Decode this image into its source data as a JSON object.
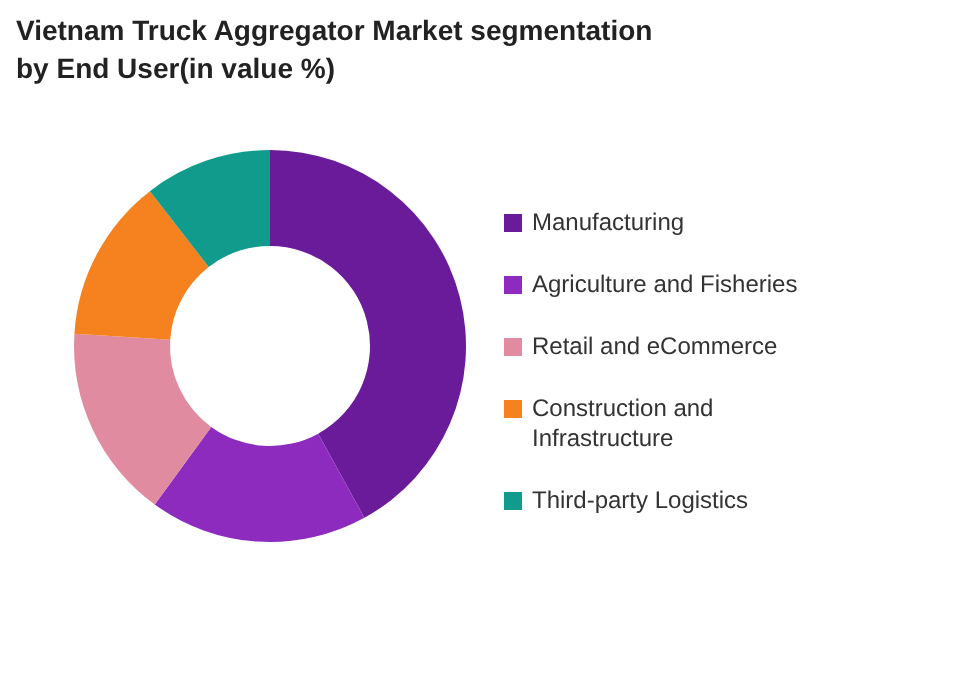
{
  "chart_data": {
    "type": "donut",
    "title": "Vietnam Truck Aggregator Market segmentation by End User(in value %)",
    "categories": [
      "Manufacturing",
      "Agriculture and Fisheries",
      "Retail and eCommerce",
      "Construction and Infrastructure",
      "Third-party Logistics"
    ],
    "values": [
      42,
      18,
      16,
      13.5,
      10.5
    ],
    "colors": [
      "#6a1b9a",
      "#8e2bbf",
      "#e08ba0",
      "#f5821f",
      "#119b8c"
    ],
    "legend": "right"
  }
}
